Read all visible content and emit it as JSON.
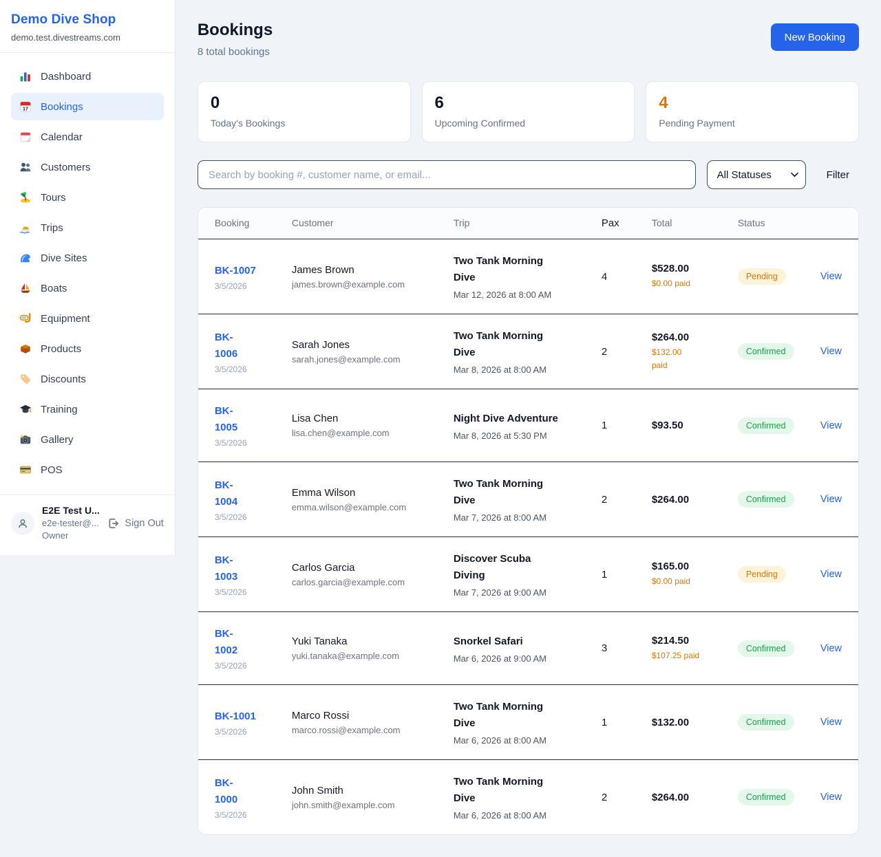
{
  "colors": {
    "accent": "#2563eb",
    "orange": "#d97706",
    "green": "#16a34a"
  },
  "sidebar": {
    "shop_name": "Demo Dive Shop",
    "shop_domain": "demo.test.divestreams.com",
    "items": [
      {
        "label": "Dashboard",
        "icon": "bar-chart-icon",
        "active": false
      },
      {
        "label": "Bookings",
        "icon": "calendar-17-icon",
        "active": true
      },
      {
        "label": "Calendar",
        "icon": "tear-off-calendar-icon",
        "active": false
      },
      {
        "label": "Customers",
        "icon": "people-icon",
        "active": false
      },
      {
        "label": "Tours",
        "icon": "island-icon",
        "active": false
      },
      {
        "label": "Trips",
        "icon": "speedboat-icon",
        "active": false
      },
      {
        "label": "Dive Sites",
        "icon": "wave-icon",
        "active": false
      },
      {
        "label": "Boats",
        "icon": "sailboat-icon",
        "active": false
      },
      {
        "label": "Equipment",
        "icon": "diving-mask-icon",
        "active": false
      },
      {
        "label": "Products",
        "icon": "package-icon",
        "active": false
      },
      {
        "label": "Discounts",
        "icon": "tag-icon",
        "active": false
      },
      {
        "label": "Training",
        "icon": "graduation-cap-icon",
        "active": false
      },
      {
        "label": "Gallery",
        "icon": "camera-icon",
        "active": false
      },
      {
        "label": "POS",
        "icon": "credit-card-icon",
        "active": false
      }
    ],
    "user": {
      "name": "E2E Test U...",
      "email": "e2e-tester@...",
      "role": "Owner",
      "signout_label": "Sign Out"
    }
  },
  "header": {
    "title": "Bookings",
    "subtitle": "8 total bookings",
    "new_booking_label": "New Booking"
  },
  "stats": [
    {
      "value": "0",
      "label": "Today's Bookings",
      "highlight": false
    },
    {
      "value": "6",
      "label": "Upcoming Confirmed",
      "highlight": false
    },
    {
      "value": "4",
      "label": "Pending Payment",
      "highlight": true
    }
  ],
  "toolbar": {
    "search_placeholder": "Search by booking #, customer name, or email...",
    "status_filter_value": "All Statuses",
    "filter_label": "Filter"
  },
  "table": {
    "columns": [
      "Booking",
      "Customer",
      "Trip",
      "Pax",
      "Total",
      "Status"
    ],
    "rows": [
      {
        "number": "BK-1007",
        "number_lines": [
          "BK-1007"
        ],
        "date": "3/5/2026",
        "customer_name": "James Brown",
        "customer_email": "james.brown@example.com",
        "trip_name": "Two Tank Morning Dive",
        "trip_name_lines": [
          "Two Tank Morning",
          "Dive"
        ],
        "trip_datetime": "Mar 12, 2026 at 8:00 AM",
        "pax": "4",
        "total": "$528.00",
        "paid": "$0.00 paid",
        "paid_lines": [
          "$0.00 paid"
        ],
        "status": "Pending",
        "view_label": "View"
      },
      {
        "number": "BK-1006",
        "number_lines": [
          "BK-",
          "1006"
        ],
        "date": "3/5/2026",
        "customer_name": "Sarah Jones",
        "customer_email": "sarah.jones@example.com",
        "trip_name": "Two Tank Morning Dive",
        "trip_name_lines": [
          "Two Tank Morning",
          "Dive"
        ],
        "trip_datetime": "Mar 8, 2026 at 8:00 AM",
        "pax": "2",
        "total": "$264.00",
        "paid": "$132.00 paid",
        "paid_lines": [
          "$132.00",
          "paid"
        ],
        "status": "Confirmed",
        "view_label": "View"
      },
      {
        "number": "BK-1005",
        "number_lines": [
          "BK-",
          "1005"
        ],
        "date": "3/5/2026",
        "customer_name": "Lisa Chen",
        "customer_email": "lisa.chen@example.com",
        "trip_name": "Night Dive Adventure",
        "trip_name_lines": [
          "Night Dive Adventure"
        ],
        "trip_datetime": "Mar 8, 2026 at 5:30 PM",
        "pax": "1",
        "total": "$93.50",
        "paid": "",
        "paid_lines": [],
        "status": "Confirmed",
        "view_label": "View"
      },
      {
        "number": "BK-1004",
        "number_lines": [
          "BK-",
          "1004"
        ],
        "date": "3/5/2026",
        "customer_name": "Emma Wilson",
        "customer_email": "emma.wilson@example.com",
        "trip_name": "Two Tank Morning Dive",
        "trip_name_lines": [
          "Two Tank Morning",
          "Dive"
        ],
        "trip_datetime": "Mar 7, 2026 at 8:00 AM",
        "pax": "2",
        "total": "$264.00",
        "paid": "",
        "paid_lines": [],
        "status": "Confirmed",
        "view_label": "View"
      },
      {
        "number": "BK-1003",
        "number_lines": [
          "BK-",
          "1003"
        ],
        "date": "3/5/2026",
        "customer_name": "Carlos Garcia",
        "customer_email": "carlos.garcia@example.com",
        "trip_name": "Discover Scuba Diving",
        "trip_name_lines": [
          "Discover Scuba",
          "Diving"
        ],
        "trip_datetime": "Mar 7, 2026 at 9:00 AM",
        "pax": "1",
        "total": "$165.00",
        "paid": "$0.00 paid",
        "paid_lines": [
          "$0.00 paid"
        ],
        "status": "Pending",
        "view_label": "View"
      },
      {
        "number": "BK-1002",
        "number_lines": [
          "BK-",
          "1002"
        ],
        "date": "3/5/2026",
        "customer_name": "Yuki Tanaka",
        "customer_email": "yuki.tanaka@example.com",
        "trip_name": "Snorkel Safari",
        "trip_name_lines": [
          "Snorkel Safari"
        ],
        "trip_datetime": "Mar 6, 2026 at 9:00 AM",
        "pax": "3",
        "total": "$214.50",
        "paid": "$107.25 paid",
        "paid_lines": [
          "$107.25 paid"
        ],
        "status": "Confirmed",
        "view_label": "View"
      },
      {
        "number": "BK-1001",
        "number_lines": [
          "BK-1001"
        ],
        "date": "3/5/2026",
        "customer_name": "Marco Rossi",
        "customer_email": "marco.rossi@example.com",
        "trip_name": "Two Tank Morning Dive",
        "trip_name_lines": [
          "Two Tank Morning",
          "Dive"
        ],
        "trip_datetime": "Mar 6, 2026 at 8:00 AM",
        "pax": "1",
        "total": "$132.00",
        "paid": "",
        "paid_lines": [],
        "status": "Confirmed",
        "view_label": "View"
      },
      {
        "number": "BK-1000",
        "number_lines": [
          "BK-",
          "1000"
        ],
        "date": "3/5/2026",
        "customer_name": "John Smith",
        "customer_email": "john.smith@example.com",
        "trip_name": "Two Tank Morning Dive",
        "trip_name_lines": [
          "Two Tank Morning",
          "Dive"
        ],
        "trip_datetime": "Mar 6, 2026 at 8:00 AM",
        "pax": "2",
        "total": "$264.00",
        "paid": "",
        "paid_lines": [],
        "status": "Confirmed",
        "view_label": "View"
      }
    ]
  }
}
